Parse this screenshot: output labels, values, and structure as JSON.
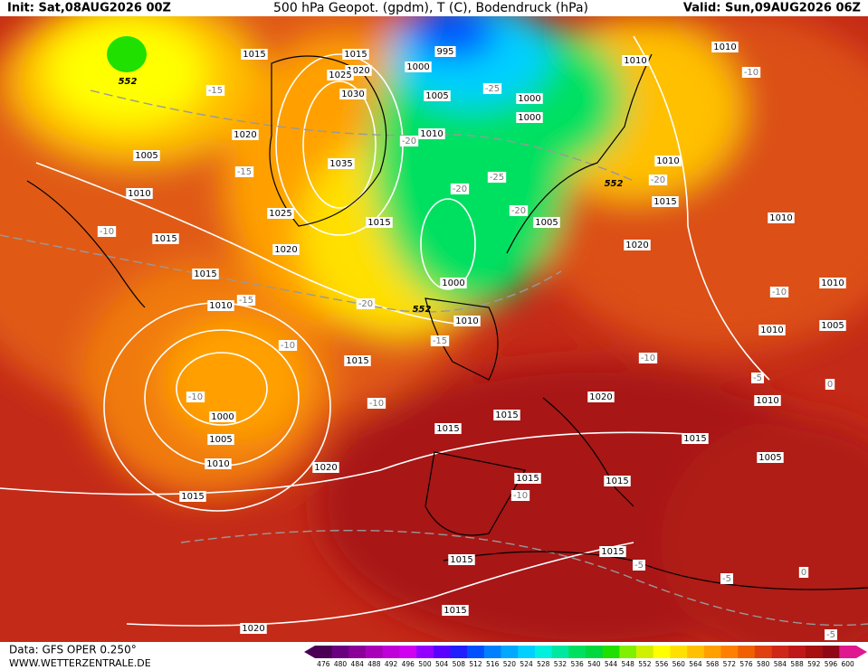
{
  "header": {
    "init": "Init: Sat,08AUG2026 00Z",
    "title": "500 hPa Geopot. (gpdm), T (C), Bodendruck (hPa)",
    "valid": "Valid: Sun,09AUG2026 06Z"
  },
  "footer": {
    "data": "Data: GFS OPER 0.250°",
    "site": "WWW.WETTERZENTRALE.DE"
  },
  "colorbar": {
    "labels": [
      476,
      480,
      484,
      488,
      492,
      496,
      500,
      504,
      508,
      512,
      516,
      520,
      524,
      528,
      532,
      536,
      540,
      544,
      548,
      552,
      556,
      560,
      564,
      568,
      572,
      576,
      580,
      584,
      588,
      592,
      596,
      600
    ],
    "colors": [
      "#4b0055",
      "#6a0080",
      "#8a0099",
      "#a800b8",
      "#c000d8",
      "#d000f0",
      "#9400ff",
      "#5a00ff",
      "#2020ff",
      "#0050ff",
      "#0080ff",
      "#00a8ff",
      "#00d0ff",
      "#00f0e0",
      "#00e8a0",
      "#00e060",
      "#00d840",
      "#20e000",
      "#80f000",
      "#d0f000",
      "#ffff00",
      "#ffe000",
      "#ffc000",
      "#ffa000",
      "#ff8000",
      "#f06000",
      "#e04010",
      "#d02818",
      "#c01818",
      "#a81010",
      "#900818",
      "#e01890"
    ]
  },
  "pressure_labels": [
    995,
    1000,
    1005,
    1000,
    1000,
    1010,
    1015,
    1015,
    1020,
    1025,
    1030,
    1035,
    1025,
    1020,
    1015,
    1005,
    1020,
    1010,
    1010,
    1010,
    1015,
    1010,
    1010,
    1010,
    1005,
    1010,
    1005,
    1020,
    1005,
    1010,
    1015,
    1015,
    1010,
    1000,
    1010,
    1015,
    1015,
    1015,
    1020,
    1015,
    1000,
    1005,
    1010,
    1020,
    1015,
    1015,
    1015,
    1015,
    1015,
    1015,
    1020
  ],
  "temperature_labels": [
    -15,
    -25,
    -20,
    -15,
    -20,
    -25,
    -20,
    -20,
    -10,
    -15,
    -20,
    -10,
    -15,
    -10,
    -10,
    -10,
    -5,
    -10,
    -10,
    -10,
    -5,
    -5,
    0,
    -5,
    0
  ],
  "height_labels": [
    552,
    552,
    552
  ]
}
